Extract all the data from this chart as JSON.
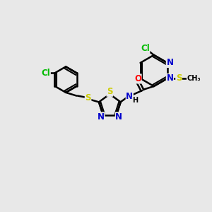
{
  "bg_color": "#e8e8e8",
  "bond_color": "#000000",
  "bond_width": 1.8,
  "atom_colors": {
    "N": "#0000cc",
    "O": "#ff0000",
    "S": "#cccc00",
    "Cl": "#00bb00",
    "H": "#000000",
    "C": "#000000"
  },
  "font_size": 8.5,
  "fig_width": 3.0,
  "fig_height": 3.0,
  "dpi": 100
}
